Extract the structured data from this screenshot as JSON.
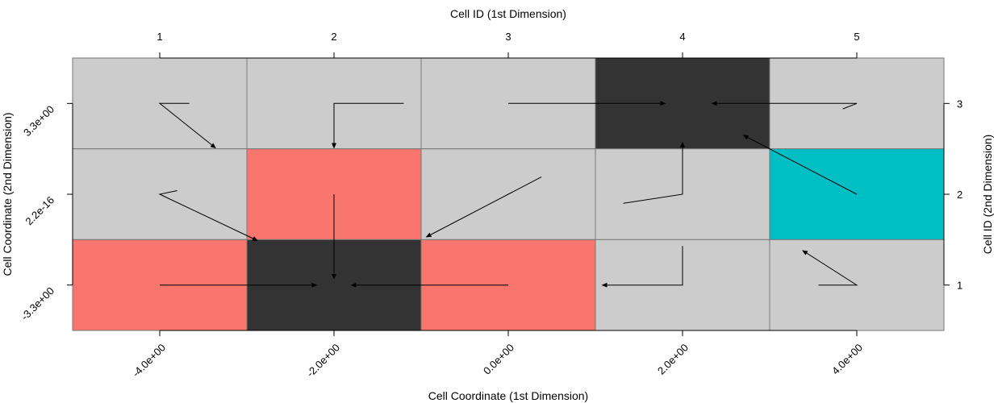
{
  "chart_data": {
    "type": "heatmap",
    "title": "",
    "top_xlabel": "Cell ID (1st Dimension)",
    "bottom_xlabel": "Cell Coordinate (1st Dimension)",
    "left_ylabel": "Cell Coordinate (2nd Dimension)",
    "right_ylabel": "Cell ID (2nd Dimension)",
    "cell_id_x": [
      "1",
      "2",
      "3",
      "4",
      "5"
    ],
    "cell_id_y": [
      "1",
      "2",
      "3"
    ],
    "coord_x_ticks": [
      "-4.0e+00",
      "-2.0e+00",
      "0.0e+00",
      "2.0e+00",
      "4.0e+00"
    ],
    "coord_y_ticks": [
      "-3.3e+00",
      "2.2e-16",
      "3.3e+00"
    ],
    "xlim": [
      0.5,
      5.5
    ],
    "ylim": [
      0.5,
      3.5
    ],
    "colors": {
      "gray": "#cccccc",
      "dark": "#333333",
      "red": "#f8766d",
      "cyan": "#00bfc4",
      "grid": "#777777",
      "arrow": "#000000"
    },
    "cells": [
      {
        "x": 1,
        "y": 3,
        "color": "gray"
      },
      {
        "x": 2,
        "y": 3,
        "color": "gray"
      },
      {
        "x": 3,
        "y": 3,
        "color": "gray"
      },
      {
        "x": 4,
        "y": 3,
        "color": "dark"
      },
      {
        "x": 5,
        "y": 3,
        "color": "gray"
      },
      {
        "x": 1,
        "y": 2,
        "color": "gray"
      },
      {
        "x": 2,
        "y": 2,
        "color": "red"
      },
      {
        "x": 3,
        "y": 2,
        "color": "gray"
      },
      {
        "x": 4,
        "y": 2,
        "color": "gray"
      },
      {
        "x": 5,
        "y": 2,
        "color": "cyan"
      },
      {
        "x": 1,
        "y": 1,
        "color": "red"
      },
      {
        "x": 2,
        "y": 1,
        "color": "dark"
      },
      {
        "x": 3,
        "y": 1,
        "color": "red"
      },
      {
        "x": 4,
        "y": 1,
        "color": "gray"
      },
      {
        "x": 5,
        "y": 1,
        "color": "gray"
      }
    ],
    "paths": [
      {
        "points": [
          [
            1.17,
            3
          ],
          [
            1,
            3
          ],
          [
            1.32,
            2.51
          ]
        ],
        "arrow": true
      },
      {
        "points": [
          [
            1.1,
            2.04
          ],
          [
            1,
            2
          ],
          [
            1.56,
            1.49
          ]
        ],
        "arrow": true
      },
      {
        "points": [
          [
            1,
            1
          ],
          [
            1.9,
            1
          ]
        ],
        "arrow": true
      },
      {
        "points": [
          [
            2.4,
            3
          ],
          [
            2,
            3
          ],
          [
            2,
            2.51
          ]
        ],
        "arrow": true
      },
      {
        "points": [
          [
            2,
            2
          ],
          [
            2,
            1.07
          ]
        ],
        "arrow": true
      },
      {
        "points": [
          [
            3,
            3
          ],
          [
            3.9,
            3
          ]
        ],
        "arrow": true
      },
      {
        "points": [
          [
            3.19,
            2.19
          ],
          [
            2.53,
            1.53
          ]
        ],
        "arrow": true
      },
      {
        "points": [
          [
            3,
            1
          ],
          [
            2.1,
            1
          ]
        ],
        "arrow": true
      },
      {
        "points": [
          [
            3.66,
            1.9
          ],
          [
            4,
            2
          ],
          [
            4,
            2.57
          ]
        ],
        "arrow": true
      },
      {
        "points": [
          [
            4,
            1.43
          ],
          [
            4,
            1
          ],
          [
            3.54,
            1
          ]
        ],
        "arrow": true
      },
      {
        "points": [
          [
            4.92,
            2.94
          ],
          [
            5,
            3
          ],
          [
            4.17,
            3
          ]
        ],
        "arrow": true
      },
      {
        "points": [
          [
            5,
            2
          ],
          [
            4.35,
            2.65
          ]
        ],
        "arrow": true
      },
      {
        "points": [
          [
            4.78,
            1
          ],
          [
            5,
            1
          ],
          [
            4.69,
            1.38
          ]
        ],
        "arrow": true
      }
    ]
  }
}
